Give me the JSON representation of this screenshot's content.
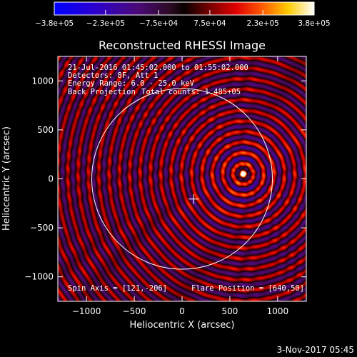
{
  "chart_data": {
    "type": "heatmap",
    "title": "Reconstructed RHESSI Image",
    "xlabel": "Heliocentric X (arcsec)",
    "ylabel": "Heliocentric Y (arcsec)",
    "xlim": [
      -1300,
      1300
    ],
    "ylim": [
      -1250,
      1250
    ],
    "xticks": [
      -1000,
      -500,
      0,
      500,
      1000
    ],
    "xtick_labels": [
      "−1000",
      "−500",
      "0",
      "500",
      "1000"
    ],
    "yticks": [
      -1000,
      -500,
      0,
      500,
      1000
    ],
    "ytick_labels": [
      "−1000",
      "−500",
      "0",
      "500",
      "1000"
    ],
    "colorbar": {
      "min": -380000,
      "max": 380000,
      "ticks": [
        -380000,
        -230000,
        -75000,
        75000,
        230000,
        380000
      ],
      "tick_labels": [
        "−3.8e+05",
        "−2.3e+05",
        "−7.5e+04",
        "7.5e+04",
        "2.3e+05",
        "3.8e+05"
      ]
    },
    "annotations": [
      "21-Jul-2016 01:45:02.000 to 01:55:02.000",
      "Detectors: 8F, Att 1",
      "Energy Range: 6.0 - 25.0 keV",
      "Back Projection",
      "Total counts: 1.485+05"
    ],
    "spin_axis_label": "Spin Axis = [121,-206]",
    "flare_position_label": "Flare Position = [640,50]",
    "flare_position": [
      640,
      50
    ],
    "spin_axis": [
      121,
      -206
    ],
    "solar_disk_radius": 945,
    "solar_disk_center": [
      0,
      0
    ]
  },
  "footer": {
    "timestamp": "3-Nov-2017 05:45"
  },
  "colors": {
    "background": "#000000",
    "axis": "#ffffff",
    "limb": "#ffffff"
  }
}
